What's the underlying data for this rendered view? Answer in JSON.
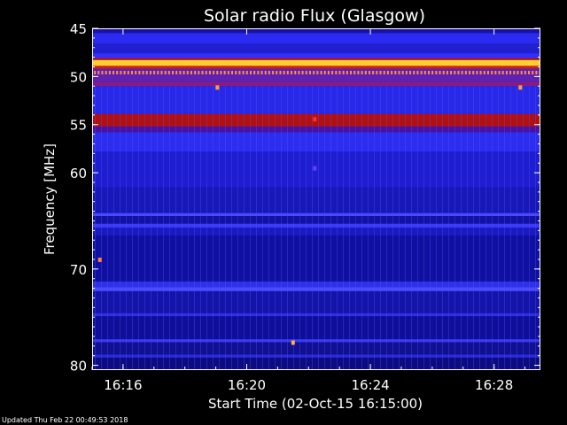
{
  "chart_data": {
    "type": "heatmap",
    "title": "Solar radio Flux (Glasgow)",
    "xlabel": "Start Time (02-Oct-15 16:15:00)",
    "ylabel": "Frequency [MHz]",
    "footer": "Updated Thu Feb 22 00:49:53 2018",
    "x_unit": "minutes of day",
    "xlim": [
      975.0,
      989.5
    ],
    "ylim": [
      80.5,
      45.0
    ],
    "x_ticks": [
      {
        "value": 976,
        "label": "16:16"
      },
      {
        "value": 980,
        "label": "16:20"
      },
      {
        "value": 984,
        "label": "16:24"
      },
      {
        "value": 988,
        "label": "16:28"
      }
    ],
    "y_ticks": [
      {
        "value": 45,
        "label": "45"
      },
      {
        "value": 50,
        "label": "50"
      },
      {
        "value": 55,
        "label": "55"
      },
      {
        "value": 60,
        "label": "60"
      },
      {
        "value": 70,
        "label": "70"
      },
      {
        "value": 80,
        "label": "80"
      }
    ],
    "background_color": "#2020d8",
    "bands": [
      {
        "f0": 45.0,
        "f1": 45.5,
        "color": "#1a10a8"
      },
      {
        "f0": 45.5,
        "f1": 46.6,
        "color": "#2a2af0"
      },
      {
        "f0": 46.6,
        "f1": 47.6,
        "color": "#2020d0"
      },
      {
        "f0": 47.6,
        "f1": 48.1,
        "color": "#3030f8"
      },
      {
        "f0": 48.1,
        "f1": 48.3,
        "color": "#c01010"
      },
      {
        "f0": 48.3,
        "f1": 48.9,
        "color": "#ffd030"
      },
      {
        "f0": 48.9,
        "f1": 49.2,
        "color": "#d02010"
      },
      {
        "f0": 49.2,
        "f1": 50.6,
        "color": "#6020b0"
      },
      {
        "f0": 50.6,
        "f1": 51.0,
        "color": "#8a1a80"
      },
      {
        "f0": 51.0,
        "f1": 53.9,
        "color": "#2828e8"
      },
      {
        "f0": 53.9,
        "f1": 55.2,
        "color": "#b01010"
      },
      {
        "f0": 55.2,
        "f1": 55.8,
        "color": "#4a10a0"
      },
      {
        "f0": 55.8,
        "f1": 57.8,
        "color": "#2d2df0"
      },
      {
        "f0": 57.8,
        "f1": 61.5,
        "color": "#1e1ed0"
      },
      {
        "f0": 61.5,
        "f1": 64.2,
        "color": "#1818b8"
      },
      {
        "f0": 64.2,
        "f1": 64.5,
        "color": "#4848ff"
      },
      {
        "f0": 64.5,
        "f1": 65.3,
        "color": "#1212a0"
      },
      {
        "f0": 65.3,
        "f1": 65.7,
        "color": "#3a3af8"
      },
      {
        "f0": 65.7,
        "f1": 66.5,
        "color": "#1a1ac0"
      },
      {
        "f0": 66.5,
        "f1": 71.3,
        "color": "#1010a0"
      },
      {
        "f0": 71.3,
        "f1": 71.9,
        "color": "#3030e8"
      },
      {
        "f0": 71.9,
        "f1": 72.3,
        "color": "#4a4aff"
      },
      {
        "f0": 72.3,
        "f1": 74.6,
        "color": "#1414a8"
      },
      {
        "f0": 74.6,
        "f1": 74.9,
        "color": "#3030e0"
      },
      {
        "f0": 74.9,
        "f1": 77.3,
        "color": "#0e0e98"
      },
      {
        "f0": 77.3,
        "f1": 77.6,
        "color": "#3a3af0"
      },
      {
        "f0": 77.6,
        "f1": 78.9,
        "color": "#101090"
      },
      {
        "f0": 78.9,
        "f1": 79.2,
        "color": "#2a2ad8"
      },
      {
        "f0": 79.2,
        "f1": 80.5,
        "color": "#0c0c80"
      }
    ],
    "pulse_row": {
      "f": 49.6,
      "color": "#ff9040",
      "interval_min": 0.12
    },
    "spots": [
      {
        "t": 979.05,
        "f": 51.1,
        "color": "#ffa030"
      },
      {
        "t": 988.85,
        "f": 51.1,
        "color": "#ffa030"
      },
      {
        "t": 982.2,
        "f": 54.4,
        "color": "#ff3020"
      },
      {
        "t": 982.2,
        "f": 59.5,
        "color": "#6040ff"
      },
      {
        "t": 975.25,
        "f": 69.0,
        "color": "#ff8040"
      },
      {
        "t": 981.5,
        "f": 77.6,
        "color": "#ffb040"
      }
    ],
    "colors": {
      "text": "#ffffff",
      "page_background": "#000000"
    }
  }
}
